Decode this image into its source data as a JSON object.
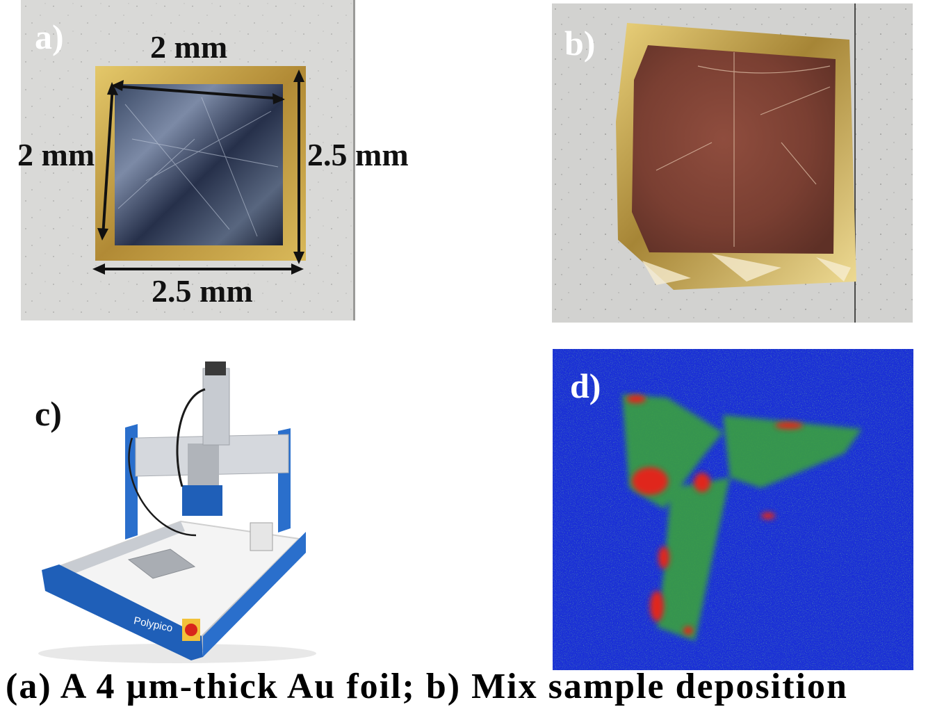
{
  "figure": {
    "panels": {
      "a": {
        "label": "a)",
        "dimensions": {
          "top": "2 mm",
          "left": "2 mm",
          "right": "2.5 mm",
          "bottom": "2.5 mm"
        }
      },
      "b": {
        "label": "b)"
      },
      "c": {
        "label": "c)",
        "brand": "Polypico"
      },
      "d": {
        "label": "d)"
      }
    },
    "colors": {
      "foil_gold": "#c9a545",
      "deposit_copper": "#8a4a3a",
      "map_blue": "#1a2fd6",
      "map_green": "#3aa638",
      "map_red": "#e0261d",
      "machine_blue": "#1f5fb8",
      "paper_gray": "#d8d8d6"
    },
    "caption_partial": "(a) A 4 µm-thick Au foil; b) Mix sample deposition"
  }
}
